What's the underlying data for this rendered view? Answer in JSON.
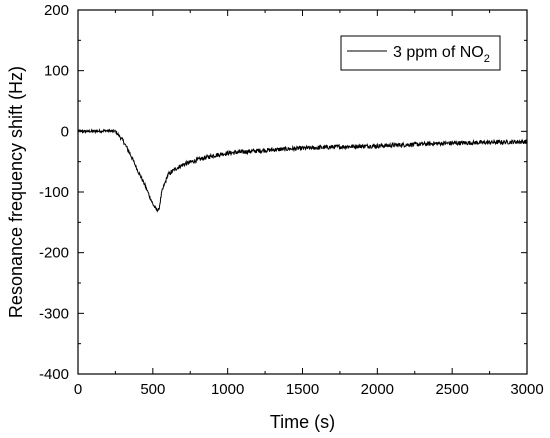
{
  "chart_data": {
    "type": "line",
    "title": "",
    "xlabel": "Time (s)",
    "ylabel": "Resonance frequency shift (Hz)",
    "xlim": [
      0,
      3000
    ],
    "ylim": [
      -400,
      200
    ],
    "x_ticks": [
      "0",
      "500",
      "1000",
      "1500",
      "2000",
      "2500",
      "3000"
    ],
    "y_ticks": [
      "200",
      "100",
      "0",
      "-100",
      "-200",
      "-300",
      "-400"
    ],
    "grid": false,
    "legend_position": "top-right",
    "series": [
      {
        "name": "3 ppm of NO2",
        "name_main": "3 ppm of NO",
        "name_subscript": "2",
        "color": "#000000",
        "x": [
          0,
          100,
          200,
          250,
          300,
          350,
          400,
          450,
          500,
          520,
          540,
          560,
          600,
          650,
          700,
          800,
          900,
          1000,
          1200,
          1400,
          1600,
          1800,
          2000,
          2200,
          2400,
          2600,
          2800,
          3000
        ],
        "y": [
          0,
          0,
          1,
          0,
          -15,
          -38,
          -65,
          -90,
          -120,
          -128,
          -130,
          -100,
          -72,
          -62,
          -55,
          -47,
          -40,
          -36,
          -32,
          -29,
          -27,
          -25,
          -24,
          -22,
          -20,
          -19,
          -18,
          -17
        ]
      }
    ]
  }
}
